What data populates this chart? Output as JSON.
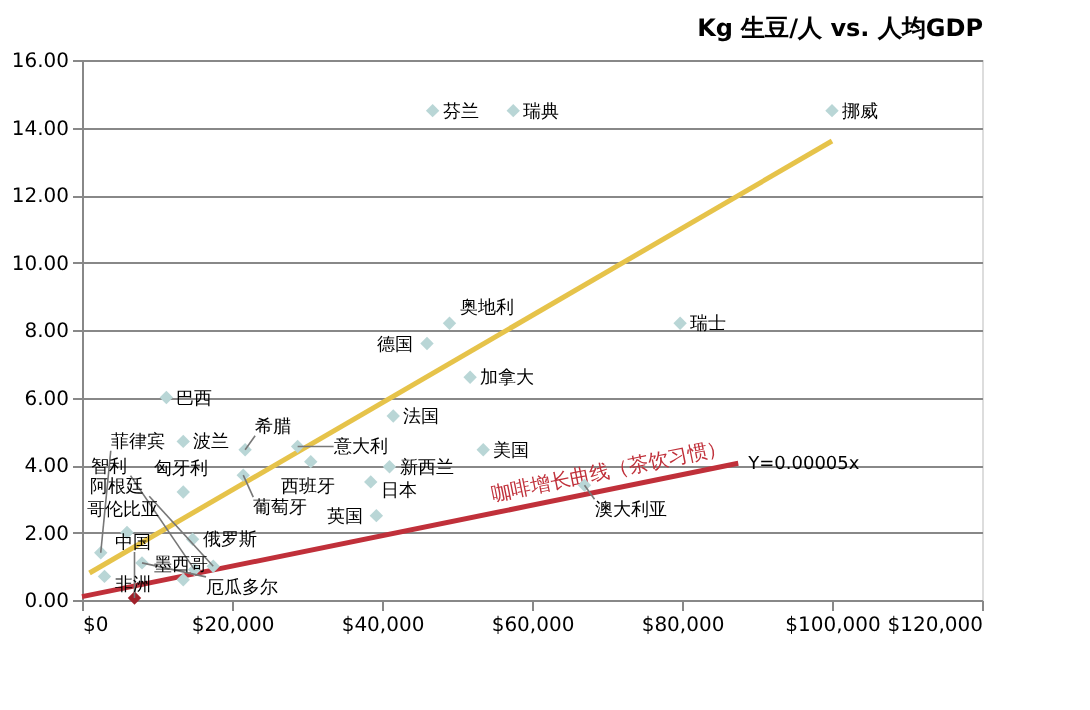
{
  "chart_data": {
    "type": "scatter",
    "title": "Kg 生豆/人 vs. 人均GDP",
    "xlim": [
      0,
      120000
    ],
    "ylim": [
      0,
      16
    ],
    "xticks": [
      {
        "value": 0,
        "label": "$0"
      },
      {
        "value": 20000,
        "label": "$20,000"
      },
      {
        "value": 40000,
        "label": "$40,000"
      },
      {
        "value": 60000,
        "label": "$60,000"
      },
      {
        "value": 80000,
        "label": "$80,000"
      },
      {
        "value": 100000,
        "label": "$100,000"
      },
      {
        "value": 120000,
        "label": "$120,000"
      }
    ],
    "yticks": [
      {
        "value": 0,
        "label": "0.00"
      },
      {
        "value": 2,
        "label": "2.00"
      },
      {
        "value": 4,
        "label": "4.00"
      },
      {
        "value": 6,
        "label": "6.00"
      },
      {
        "value": 8,
        "label": "8.00"
      },
      {
        "value": 10,
        "label": "10.00"
      },
      {
        "value": 12,
        "label": "12.00"
      },
      {
        "value": 14,
        "label": "14.00"
      },
      {
        "value": 16,
        "label": "16.00"
      }
    ],
    "grid": "y",
    "series": [
      {
        "type": "scatter",
        "marker": "diamond",
        "color": "#b9d6d6",
        "x": [
          46750,
          57500,
          100000,
          79750,
          49000,
          46000,
          51750,
          41500,
          11250,
          13500,
          21750,
          28750,
          30500,
          53500,
          41000,
          38500,
          39250,
          67000,
          13500,
          21500,
          6000,
          14750,
          2500,
          8000,
          17500,
          15000,
          13500,
          3000,
          7000
        ],
        "values": [
          14.5,
          14.5,
          14.5,
          8.2,
          8.2,
          7.6,
          6.6,
          5.45,
          6.0,
          4.7,
          4.45,
          4.55,
          4.1,
          4.45,
          3.95,
          3.5,
          2.5,
          3.4,
          3.2,
          3.7,
          2.0,
          1.8,
          1.4,
          1.1,
          1.0,
          0.9,
          0.6,
          0.7,
          0.06
        ],
        "colors": [
          null,
          null,
          null,
          null,
          null,
          null,
          null,
          null,
          null,
          null,
          null,
          null,
          null,
          null,
          null,
          null,
          null,
          null,
          null,
          null,
          null,
          null,
          null,
          null,
          null,
          null,
          null,
          null,
          "#a0202a"
        ]
      },
      {
        "type": "line",
        "marker": "none",
        "color": "#e6c34a",
        "x": [
          1000,
          100000
        ],
        "values": [
          0.8,
          13.6
        ]
      },
      {
        "type": "line",
        "marker": "none",
        "name": "咖啡增长曲线（茶饮习惯）",
        "color": "#c0303a",
        "x": [
          0,
          87500
        ],
        "values": [
          0.1,
          4.05
        ]
      }
    ],
    "annotations": [
      {
        "text": "芬兰",
        "x": 46750,
        "y": 14.5
      },
      {
        "text": "瑞典",
        "x": 57500,
        "y": 14.5
      },
      {
        "text": "挪威",
        "x": 100000,
        "y": 14.5
      },
      {
        "text": "瑞士",
        "x": 79750,
        "y": 8.2
      },
      {
        "text": "奥地利",
        "x": 49000,
        "y": 8.2
      },
      {
        "text": "德国",
        "x": 46000,
        "y": 7.6
      },
      {
        "text": "加拿大",
        "x": 51750,
        "y": 6.6
      },
      {
        "text": "法国",
        "x": 41500,
        "y": 5.45
      },
      {
        "text": "巴西",
        "x": 11250,
        "y": 6.0
      },
      {
        "text": "波兰",
        "x": 13500,
        "y": 4.7
      },
      {
        "text": "希腊",
        "x": 21750,
        "y": 4.45
      },
      {
        "text": "意大利",
        "x": 28750,
        "y": 4.55
      },
      {
        "text": "西班牙",
        "x": 30500,
        "y": 4.1
      },
      {
        "text": "美国",
        "x": 53500,
        "y": 4.45
      },
      {
        "text": "新西兰",
        "x": 41000,
        "y": 3.95
      },
      {
        "text": "日本",
        "x": 38500,
        "y": 3.5
      },
      {
        "text": "英国",
        "x": 39250,
        "y": 2.5
      },
      {
        "text": "澳大利亚",
        "x": 67000,
        "y": 3.4
      },
      {
        "text": "匈牙利",
        "x": 13500,
        "y": 3.2
      },
      {
        "text": "葡萄牙",
        "x": 21500,
        "y": 3.7
      },
      {
        "text": "哥伦比亚",
        "x": 6000,
        "y": 2.0
      },
      {
        "text": "俄罗斯",
        "x": 14750,
        "y": 1.8
      },
      {
        "text": "菲律宾",
        "x": 2500,
        "y": 1.4
      },
      {
        "text": "厄瓜多尔",
        "x": 8000,
        "y": 1.1
      },
      {
        "text": "阿根廷",
        "x": 17500,
        "y": 1.0
      },
      {
        "text": "智利",
        "x": 15000,
        "y": 0.9
      },
      {
        "text": "墨西哥",
        "x": 13500,
        "y": 0.6
      },
      {
        "text": "非洲",
        "x": 3000,
        "y": 0.7
      },
      {
        "text": "中国",
        "x": 7000,
        "y": 0.06
      },
      {
        "text": "Y=0.00005x",
        "x": 87500,
        "y": 4.05
      }
    ]
  }
}
